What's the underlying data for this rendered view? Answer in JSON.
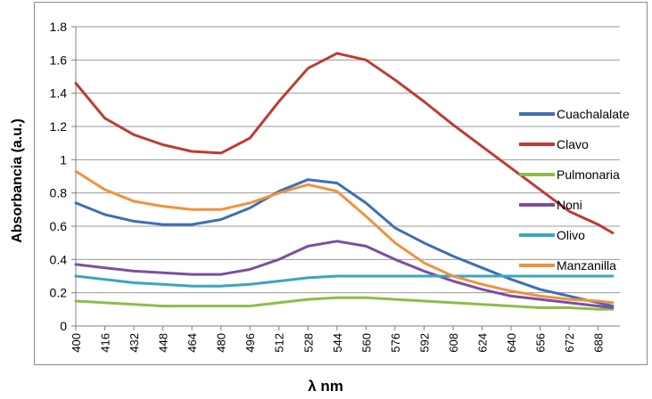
{
  "chart_data": {
    "type": "line",
    "title": "",
    "xlabel": "λ nm",
    "ylabel": "Absorbancia (a.u.)",
    "xlim": [
      400,
      700
    ],
    "ylim": [
      0,
      1.8
    ],
    "yticks": [
      "0",
      "0.2",
      "0.4",
      "0.6",
      "0.8",
      "1",
      "1.2",
      "1.4",
      "1.6",
      "1.8"
    ],
    "xticks": [
      "400",
      "416",
      "432",
      "448",
      "464",
      "480",
      "496",
      "512",
      "528",
      "544",
      "560",
      "576",
      "592",
      "608",
      "624",
      "640",
      "656",
      "672",
      "688"
    ],
    "grid": "horizontal",
    "legend_position": "right",
    "x": [
      400,
      416,
      432,
      448,
      464,
      480,
      496,
      512,
      528,
      544,
      560,
      576,
      592,
      608,
      624,
      640,
      656,
      672,
      688,
      696
    ],
    "series": [
      {
        "name": "Cuachalalate",
        "color": "#3f6eb5",
        "values": [
          0.74,
          0.67,
          0.63,
          0.61,
          0.61,
          0.64,
          0.71,
          0.81,
          0.88,
          0.86,
          0.74,
          0.59,
          0.5,
          0.42,
          0.35,
          0.28,
          0.22,
          0.18,
          0.14,
          0.12
        ]
      },
      {
        "name": "Clavo",
        "color": "#bf3b36",
        "values": [
          1.46,
          1.25,
          1.15,
          1.09,
          1.05,
          1.04,
          1.13,
          1.35,
          1.55,
          1.64,
          1.6,
          1.48,
          1.35,
          1.21,
          1.08,
          0.95,
          0.82,
          0.69,
          0.61,
          0.56
        ]
      },
      {
        "name": "Pulmonaria",
        "color": "#8fbc4a",
        "values": [
          0.15,
          0.14,
          0.13,
          0.12,
          0.12,
          0.12,
          0.12,
          0.14,
          0.16,
          0.17,
          0.17,
          0.16,
          0.15,
          0.14,
          0.13,
          0.12,
          0.11,
          0.11,
          0.1,
          0.1
        ]
      },
      {
        "name": "Noni",
        "color": "#7b4fa0",
        "values": [
          0.37,
          0.35,
          0.33,
          0.32,
          0.31,
          0.31,
          0.34,
          0.4,
          0.48,
          0.51,
          0.48,
          0.4,
          0.33,
          0.27,
          0.22,
          0.18,
          0.16,
          0.14,
          0.12,
          0.11
        ]
      },
      {
        "name": "Olivo",
        "color": "#3aa6c0",
        "values": [
          0.3,
          0.28,
          0.26,
          0.25,
          0.24,
          0.24,
          0.25,
          0.27,
          0.29,
          0.3,
          0.3,
          0.3,
          0.3,
          0.3,
          0.3,
          0.3,
          0.3,
          0.3,
          0.3,
          0.3
        ]
      },
      {
        "name": "Manzanilla",
        "color": "#f0923c",
        "values": [
          0.93,
          0.82,
          0.75,
          0.72,
          0.7,
          0.7,
          0.74,
          0.8,
          0.85,
          0.81,
          0.66,
          0.5,
          0.38,
          0.3,
          0.25,
          0.21,
          0.18,
          0.16,
          0.15,
          0.14
        ]
      }
    ]
  }
}
